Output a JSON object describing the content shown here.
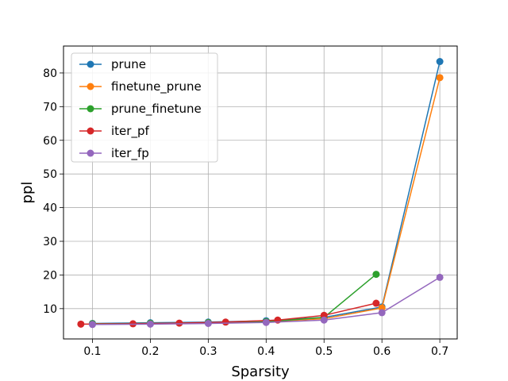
{
  "chart_data": {
    "type": "line",
    "xlabel": "Sparsity",
    "ylabel": "ppl",
    "xlim": [
      0.05,
      0.73
    ],
    "ylim": [
      1,
      88
    ],
    "xticks": [
      "0.1",
      "0.2",
      "0.3",
      "0.4",
      "0.5",
      "0.6",
      "0.7"
    ],
    "yticks": [
      "10",
      "20",
      "30",
      "40",
      "50",
      "60",
      "70",
      "80"
    ],
    "grid": true,
    "legend_position": "upper-left",
    "series": [
      {
        "name": "prune",
        "color": "#1f77b4",
        "x": [
          0.1,
          0.2,
          0.3,
          0.4,
          0.5,
          0.6,
          0.7
        ],
        "y": [
          5.6,
          5.8,
          6.0,
          6.4,
          7.4,
          10.5,
          83.4
        ]
      },
      {
        "name": "finetune_prune",
        "color": "#ff7f0e",
        "x": [
          0.1,
          0.2,
          0.3,
          0.4,
          0.5,
          0.6,
          0.7
        ],
        "y": [
          5.5,
          5.6,
          5.8,
          6.1,
          7.0,
          10.2,
          78.6
        ]
      },
      {
        "name": "prune_finetune",
        "color": "#2ca02c",
        "x": [
          0.1,
          0.2,
          0.3,
          0.4,
          0.5,
          0.59
        ],
        "y": [
          5.5,
          5.6,
          5.8,
          6.1,
          7.4,
          20.2
        ]
      },
      {
        "name": "iter_pf",
        "color": "#d62728",
        "x": [
          0.08,
          0.17,
          0.25,
          0.33,
          0.42,
          0.5,
          0.59
        ],
        "y": [
          5.4,
          5.5,
          5.7,
          6.0,
          6.6,
          8.0,
          11.6
        ]
      },
      {
        "name": "iter_fp",
        "color": "#9467bd",
        "x": [
          0.1,
          0.2,
          0.3,
          0.4,
          0.5,
          0.6,
          0.7
        ],
        "y": [
          5.3,
          5.4,
          5.6,
          5.9,
          6.6,
          8.8,
          19.3
        ]
      }
    ]
  }
}
